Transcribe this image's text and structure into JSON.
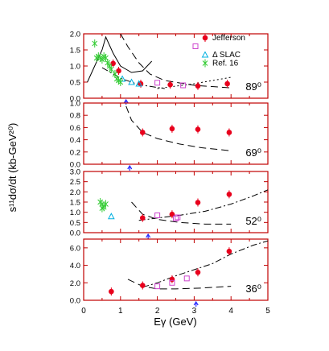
{
  "figure": {
    "ylabel": "s¹¹dσ/dt  (kb-GeV²⁰)",
    "xlabel": "Eγ (GeV)",
    "x_ticks": [
      "0",
      "1",
      "2",
      "3",
      "4",
      "5"
    ],
    "legend": [
      {
        "label": "Jefferson",
        "marker": "filled-circle",
        "color": "#e8001c"
      },
      {
        "label": "SLAC",
        "marker": "open-square",
        "color": "#cc44cc"
      },
      {
        "label": "Δ SLAC",
        "marker": "open-triangle",
        "color": "#00b0e0"
      },
      {
        "label": "Ref. 16",
        "marker": "cross",
        "color": "#33cc33"
      }
    ],
    "colors": {
      "frame": "#c00000",
      "arrow": "#2b2bff",
      "curve": "#000000"
    }
  },
  "chart_data": [
    {
      "type": "scatter",
      "panel_label": "89⁰",
      "xlim": [
        0,
        5
      ],
      "ylim": [
        0,
        2.0
      ],
      "y_ticks": [
        "0.0",
        "0.5",
        "1.0",
        "1.5",
        "2.0"
      ],
      "arrow_x": 1.15,
      "series": [
        {
          "name": "Jefferson",
          "marker": "filled-circle",
          "color": "#e8001c",
          "points": [
            [
              0.8,
              1.08
            ],
            [
              0.95,
              0.85
            ],
            [
              1.55,
              0.45
            ],
            [
              2.35,
              0.42
            ],
            [
              3.1,
              0.38
            ],
            [
              3.9,
              0.45
            ]
          ]
        },
        {
          "name": "SLAC",
          "marker": "open-square",
          "color": "#cc44cc",
          "points": [
            [
              2.0,
              0.48
            ],
            [
              2.7,
              0.4
            ]
          ]
        },
        {
          "name": "Δ SLAC",
          "marker": "open-triangle",
          "color": "#00b0e0",
          "points": [
            [
              1.05,
              0.6
            ],
            [
              1.3,
              0.5
            ],
            [
              1.5,
              0.45
            ]
          ]
        },
        {
          "name": "Ref. 16",
          "marker": "cross",
          "color": "#33cc33",
          "points": [
            [
              0.3,
              1.7
            ],
            [
              0.35,
              1.25
            ],
            [
              0.4,
              1.3
            ],
            [
              0.45,
              1.25
            ],
            [
              0.5,
              1.2
            ],
            [
              0.55,
              1.3
            ],
            [
              0.6,
              1.25
            ],
            [
              0.65,
              1.1
            ],
            [
              0.7,
              1.0
            ],
            [
              0.75,
              0.9
            ],
            [
              0.85,
              0.75
            ],
            [
              0.9,
              0.6
            ],
            [
              0.95,
              0.55
            ],
            [
              1.0,
              0.5
            ]
          ]
        }
      ],
      "curves": [
        {
          "style": "solid",
          "points": [
            [
              0.1,
              0.5
            ],
            [
              0.3,
              1.0
            ],
            [
              0.5,
              1.5
            ],
            [
              0.6,
              1.9
            ],
            [
              0.8,
              1.4
            ],
            [
              1.0,
              1.0
            ],
            [
              1.3,
              0.8
            ],
            [
              1.6,
              0.85
            ],
            [
              1.85,
              1.15
            ]
          ]
        },
        {
          "style": "dashed",
          "points": [
            [
              1.0,
              2.0
            ],
            [
              1.2,
              1.6
            ],
            [
              1.5,
              1.1
            ],
            [
              1.8,
              0.75
            ],
            [
              2.2,
              0.55
            ],
            [
              3.0,
              0.4
            ],
            [
              4.0,
              0.32
            ]
          ]
        },
        {
          "style": "dotted",
          "points": [
            [
              2.0,
              0.3
            ],
            [
              3.0,
              0.45
            ],
            [
              4.0,
              0.65
            ]
          ]
        },
        {
          "style": "dashdot",
          "points": [
            [
              0.5,
              0.95
            ],
            [
              1.0,
              0.62
            ],
            [
              1.5,
              0.42
            ],
            [
              2.2,
              0.3
            ]
          ]
        }
      ]
    },
    {
      "type": "scatter",
      "panel_label": "69⁰",
      "xlim": [
        0,
        5
      ],
      "ylim": [
        0,
        1.0
      ],
      "y_ticks": [
        "0.0",
        "0.2",
        "0.4",
        "0.6",
        "0.8",
        "1.0"
      ],
      "arrow_x": 1.25,
      "series": [
        {
          "name": "Jefferson",
          "marker": "filled-circle",
          "color": "#e8001c",
          "points": [
            [
              1.6,
              0.52
            ],
            [
              2.4,
              0.58
            ],
            [
              3.1,
              0.57
            ],
            [
              3.95,
              0.52
            ]
          ]
        }
      ],
      "curves": [
        {
          "style": "dashed",
          "points": [
            [
              1.15,
              0.95
            ],
            [
              1.3,
              0.72
            ],
            [
              1.6,
              0.52
            ],
            [
              2.0,
              0.42
            ],
            [
              2.6,
              0.33
            ],
            [
              3.2,
              0.27
            ],
            [
              4.0,
              0.22
            ]
          ]
        }
      ]
    },
    {
      "type": "scatter",
      "panel_label": "52⁰",
      "xlim": [
        0,
        5
      ],
      "ylim": [
        0,
        3.0
      ],
      "y_ticks": [
        "0.0",
        "0.5",
        "1.0",
        "1.5",
        "2.0",
        "2.5",
        "3.0"
      ],
      "arrow_x": 1.75,
      "series": [
        {
          "name": "Jefferson",
          "marker": "filled-circle",
          "color": "#e8001c",
          "points": [
            [
              1.6,
              0.72
            ],
            [
              2.4,
              0.9
            ],
            [
              3.1,
              1.48
            ],
            [
              3.95,
              1.88
            ]
          ]
        },
        {
          "name": "SLAC",
          "marker": "open-square",
          "color": "#cc44cc",
          "points": [
            [
              2.0,
              0.85
            ],
            [
              2.5,
              0.7
            ],
            [
              2.55,
              0.75
            ]
          ]
        },
        {
          "name": "Δ SLAC",
          "marker": "open-triangle",
          "color": "#00b0e0",
          "points": [
            [
              0.75,
              0.8
            ]
          ]
        },
        {
          "name": "Ref. 16",
          "marker": "cross",
          "color": "#33cc33",
          "points": [
            [
              0.45,
              1.5
            ],
            [
              0.5,
              1.4
            ],
            [
              0.55,
              1.25
            ],
            [
              0.6,
              1.4
            ],
            [
              0.5,
              1.2
            ]
          ]
        }
      ],
      "curves": [
        {
          "style": "dashed",
          "points": [
            [
              1.3,
              1.5
            ],
            [
              1.6,
              0.9
            ],
            [
              2.0,
              0.65
            ],
            [
              2.6,
              0.5
            ],
            [
              3.3,
              0.42
            ],
            [
              4.0,
              0.42
            ]
          ]
        },
        {
          "style": "dashdot",
          "points": [
            [
              1.5,
              0.6
            ],
            [
              2.0,
              0.72
            ],
            [
              2.6,
              0.85
            ],
            [
              3.3,
              1.05
            ],
            [
              4.0,
              1.4
            ],
            [
              4.6,
              1.8
            ],
            [
              5.0,
              2.1
            ]
          ]
        }
      ]
    },
    {
      "type": "scatter",
      "panel_label": "36⁰",
      "xlim": [
        0,
        5
      ],
      "ylim": [
        0,
        7.0
      ],
      "y_ticks": [
        "0.0",
        "2.0",
        "4.0",
        "6.0"
      ],
      "arrow_x": 3.05,
      "series": [
        {
          "name": "Jefferson",
          "marker": "filled-circle",
          "color": "#e8001c",
          "points": [
            [
              0.75,
              1.0
            ],
            [
              1.6,
              1.7
            ],
            [
              2.4,
              2.4
            ],
            [
              3.1,
              3.2
            ],
            [
              3.95,
              5.6
            ]
          ]
        },
        {
          "name": "SLAC",
          "marker": "open-square",
          "color": "#cc44cc",
          "points": [
            [
              2.0,
              1.6
            ],
            [
              2.4,
              2.0
            ],
            [
              2.8,
              2.5
            ]
          ]
        }
      ],
      "curves": [
        {
          "style": "dashed",
          "points": [
            [
              1.2,
              2.4
            ],
            [
              1.6,
              1.6
            ],
            [
              2.0,
              1.3
            ],
            [
              2.5,
              1.3
            ],
            [
              3.2,
              1.4
            ],
            [
              4.0,
              1.6
            ]
          ]
        },
        {
          "style": "dashdot",
          "points": [
            [
              1.6,
              1.5
            ],
            [
              2.0,
              2.0
            ],
            [
              2.5,
              2.8
            ],
            [
              3.0,
              3.5
            ],
            [
              3.5,
              4.2
            ],
            [
              4.0,
              5.3
            ],
            [
              4.6,
              6.3
            ],
            [
              5.0,
              6.8
            ]
          ]
        }
      ]
    }
  ]
}
